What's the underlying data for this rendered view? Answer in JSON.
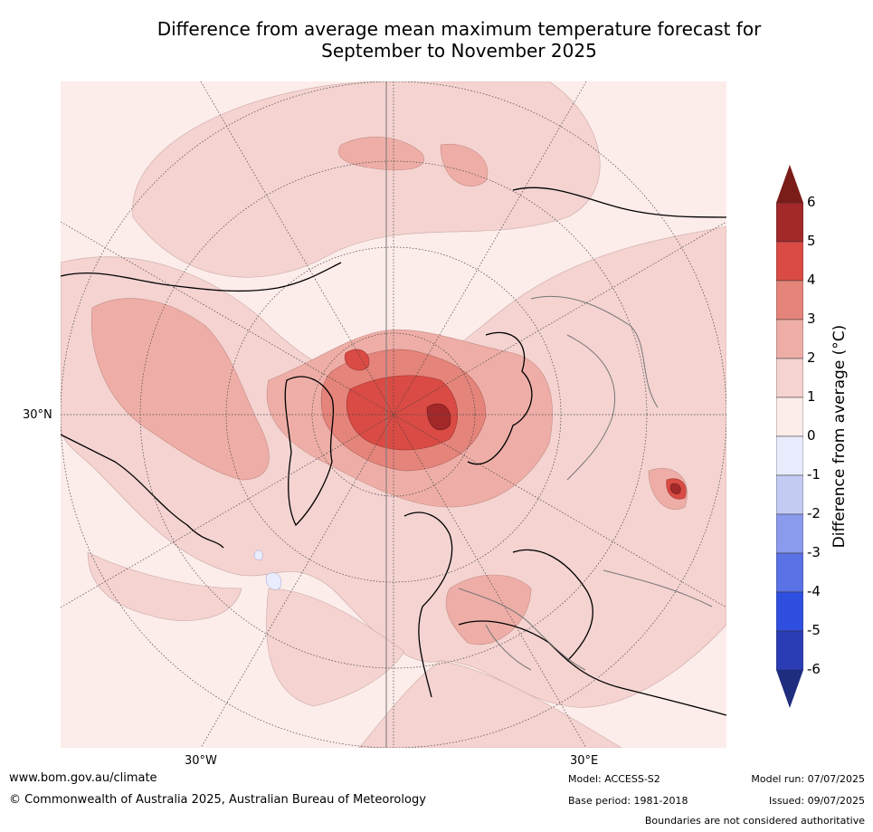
{
  "title_line1": "Difference from average mean maximum temperature forecast for",
  "title_line2": "September to November 2025",
  "map": {
    "lat_labels": [
      "30°N"
    ],
    "lon_labels": [
      "30°W",
      "30°E"
    ]
  },
  "colorbar": {
    "label": "Difference from average (°C)",
    "ticks": [
      "6",
      "5",
      "4",
      "3",
      "2",
      "1",
      "0",
      "-1",
      "-2",
      "-3",
      "-4",
      "-5",
      "-6"
    ],
    "colors": [
      "#a2282a",
      "#d94b44",
      "#e4847b",
      "#eeaea7",
      "#f4d3d0",
      "#fcecea",
      "#e8ecfc",
      "#c3cbf3",
      "#8a9bed",
      "#5a72e5",
      "#2e4fe0",
      "#2b3db5"
    ],
    "over_color": "#7a1c18",
    "under_color": "#1f2d7e"
  },
  "footer": {
    "website": "www.bom.gov.au/climate",
    "copyright": "© Commonwealth of Australia 2025, Australian Bureau of Meteorology",
    "model": "Model: ACCESS-S2",
    "base_period": "Base period: 1981-2018",
    "model_run": "Model run: 07/07/2025",
    "issued": "Issued: 09/07/2025",
    "disclaimer": "Boundaries are not considered authoritative"
  }
}
